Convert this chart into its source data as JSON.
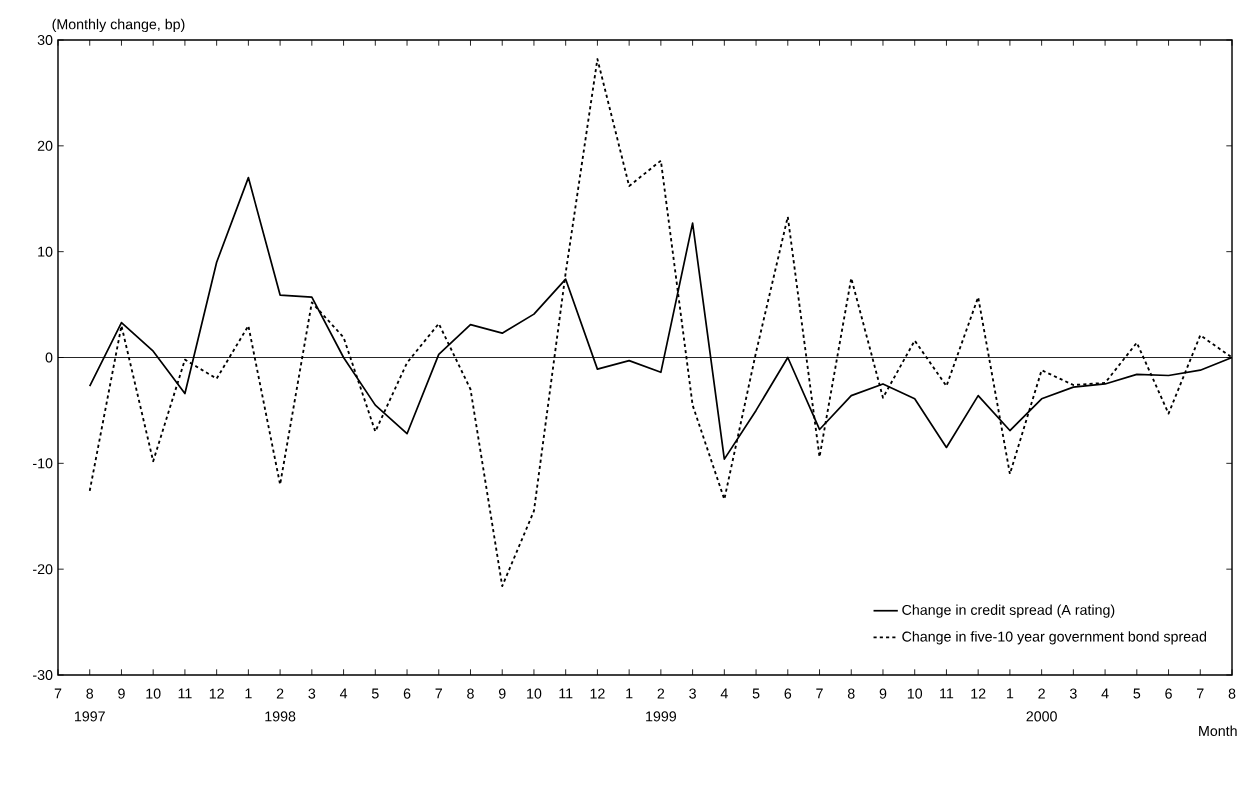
{
  "chart_data": {
    "type": "line",
    "ylabel": "(Monthly change, bp)",
    "xlabel": "Month",
    "x": [
      "1997-08",
      "1997-09",
      "1997-10",
      "1997-11",
      "1997-12",
      "1998-01",
      "1998-02",
      "1998-03",
      "1998-04",
      "1998-05",
      "1998-06",
      "1998-07",
      "1998-08",
      "1998-09",
      "1998-10",
      "1998-11",
      "1998-12",
      "1999-01",
      "1999-02",
      "1999-03",
      "1999-04",
      "1999-05",
      "1999-06",
      "1999-07",
      "1999-08",
      "1999-09",
      "1999-10",
      "1999-11",
      "1999-12",
      "2000-01",
      "2000-02",
      "2000-03",
      "2000-04",
      "2000-05",
      "2000-06",
      "2000-07",
      "2000-08"
    ],
    "series": [
      {
        "name": "Change in credit spread (A rating)",
        "color": "#000000",
        "line_style": "solid",
        "values": [
          -2.7,
          3.3,
          0.6,
          -3.4,
          9.0,
          17.0,
          5.9,
          5.7,
          0,
          -4.5,
          -7.2,
          0.3,
          3.1,
          2.3,
          4.1,
          7.4,
          -1.1,
          -0.3,
          -1.4,
          12.7,
          -9.6,
          -5.0,
          0,
          -6.8,
          -3.6,
          -2.5,
          -3.9,
          -8.5,
          -3.6,
          -6.9,
          -3.9,
          -2.8,
          -2.5,
          -1.6,
          -1.7,
          -1.2,
          0
        ]
      },
      {
        "name": "Change in five-10 year government bond spread",
        "color": "#000000",
        "line_style": "dashed",
        "values": [
          -12.6,
          3.0,
          -9.8,
          -0.2,
          -2.0,
          3.0,
          -12.0,
          5.2,
          1.9,
          -7.0,
          -0.5,
          3.2,
          -3.0,
          -21.6,
          -14.5,
          8.0,
          28.2,
          16.2,
          18.6,
          -4.5,
          -13.4,
          0.5,
          13.3,
          -9.4,
          7.5,
          -3.8,
          1.6,
          -2.7,
          5.7,
          -11.0,
          -1.2,
          -2.6,
          -2.4,
          1.4,
          -5.3,
          2.1,
          0
        ]
      }
    ],
    "xlim": [
      "1997-07",
      "2000-08"
    ],
    "xticks": [
      {
        "value": "1997-07",
        "label": "7"
      },
      {
        "value": "1997-08",
        "label": "8"
      },
      {
        "value": "1997-09",
        "label": "9"
      },
      {
        "value": "1997-10",
        "label": "10"
      },
      {
        "value": "1997-11",
        "label": "11"
      },
      {
        "value": "1997-12",
        "label": "12"
      },
      {
        "value": "1998-01",
        "label": "1"
      },
      {
        "value": "1998-02",
        "label": "2"
      },
      {
        "value": "1998-03",
        "label": "3"
      },
      {
        "value": "1998-04",
        "label": "4"
      },
      {
        "value": "1998-05",
        "label": "5"
      },
      {
        "value": "1998-06",
        "label": "6"
      },
      {
        "value": "1998-07",
        "label": "7"
      },
      {
        "value": "1998-08",
        "label": "8"
      },
      {
        "value": "1998-09",
        "label": "9"
      },
      {
        "value": "1998-10",
        "label": "10"
      },
      {
        "value": "1998-11",
        "label": "11"
      },
      {
        "value": "1998-12",
        "label": "12"
      },
      {
        "value": "1999-01",
        "label": "1"
      },
      {
        "value": "1999-02",
        "label": "2"
      },
      {
        "value": "1999-03",
        "label": "3"
      },
      {
        "value": "1999-04",
        "label": "4"
      },
      {
        "value": "1999-05",
        "label": "5"
      },
      {
        "value": "1999-06",
        "label": "6"
      },
      {
        "value": "1999-07",
        "label": "7"
      },
      {
        "value": "1999-08",
        "label": "8"
      },
      {
        "value": "1999-09",
        "label": "9"
      },
      {
        "value": "1999-10",
        "label": "10"
      },
      {
        "value": "1999-11",
        "label": "11"
      },
      {
        "value": "1999-12",
        "label": "12"
      },
      {
        "value": "2000-01",
        "label": "1"
      },
      {
        "value": "2000-02",
        "label": "2"
      },
      {
        "value": "2000-03",
        "label": "3"
      },
      {
        "value": "2000-04",
        "label": "4"
      },
      {
        "value": "2000-05",
        "label": "5"
      },
      {
        "value": "2000-06",
        "label": "6"
      },
      {
        "value": "2000-07",
        "label": "7"
      },
      {
        "value": "2000-08",
        "label": "8"
      }
    ],
    "x2lim": [
      "1997-07",
      "2000-08"
    ],
    "x2ticks": [
      {
        "value": "1997-08",
        "label": "1997"
      },
      {
        "value": "1998-02",
        "label": "1998"
      },
      {
        "value": "1999-02",
        "label": "1999"
      },
      {
        "value": "2000-02",
        "label": "2000"
      }
    ],
    "ylim": [
      -30,
      30
    ],
    "yticks": [
      -30,
      -20,
      -10,
      0,
      10,
      20,
      30
    ],
    "ref_lines": [
      {
        "axis": "y",
        "value": 0,
        "color": "#000000"
      }
    ],
    "grid": false,
    "legend": "bottom right",
    "marker": "none"
  }
}
